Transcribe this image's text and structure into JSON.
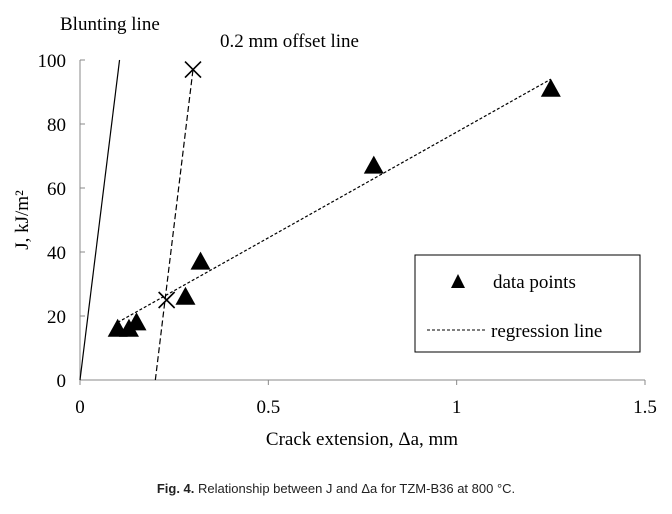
{
  "chart_data": {
    "type": "scatter",
    "xlabel": "Crack extension, Δa, mm",
    "ylabel": "J, kJ/m²",
    "xlim": [
      0,
      1.5
    ],
    "ylim": [
      0,
      100
    ],
    "xticks": [
      "0",
      "0.5",
      "1",
      "1.5"
    ],
    "yticks": [
      "0",
      "20",
      "40",
      "60",
      "80",
      "100"
    ],
    "grid": false,
    "legend_position": "bottom-right",
    "legend": [
      "data points",
      "regression line"
    ],
    "series": [
      {
        "name": "data points",
        "x": [
          0.1,
          0.13,
          0.15,
          0.28,
          0.32,
          0.78,
          1.25
        ],
        "y": [
          16,
          16,
          18,
          26,
          37,
          67,
          91
        ]
      },
      {
        "name": "regression line",
        "x": [
          0.1,
          1.25
        ],
        "y": [
          18,
          94
        ]
      },
      {
        "name": "Blunting line",
        "x": [
          0,
          0.105
        ],
        "y": [
          0,
          100
        ]
      },
      {
        "name": "0.2 mm offset line",
        "x": [
          0.2,
          0.3
        ],
        "y": [
          0,
          97
        ]
      },
      {
        "name": "intersections",
        "x": [
          0.23,
          0.3
        ],
        "y": [
          25,
          97
        ]
      }
    ],
    "annotations": [
      "Blunting line",
      "0.2 mm offset line"
    ]
  },
  "caption": {
    "label": "Fig. 4.",
    "text": " Relationship between J and Δa for TZM-B36 at 800 °C."
  }
}
